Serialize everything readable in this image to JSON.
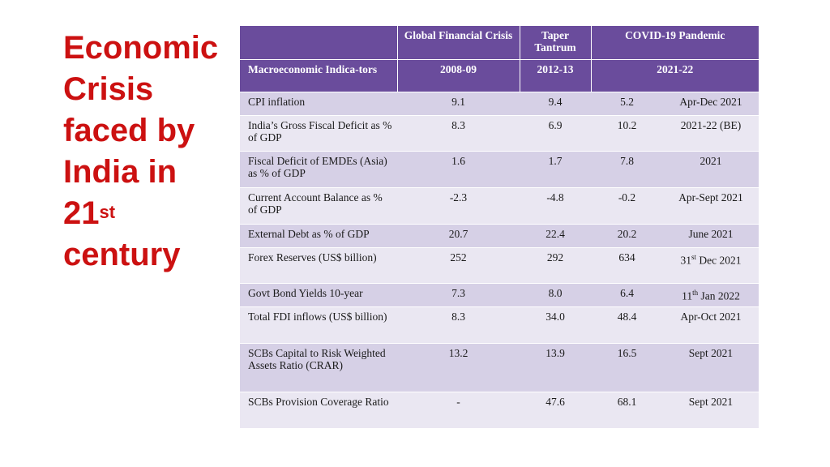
{
  "title": {
    "line1": "Economic",
    "line2": "Crisis",
    "line3": "faced by",
    "line4": "India in",
    "line5_base": "21",
    "line5_sup": "st",
    "line6": "century"
  },
  "table": {
    "headers": {
      "gfc": "Global Financial Crisis",
      "taper": "Taper Tantrum",
      "covid": "COVID-19 Pandemic",
      "indicator": "Macroeconomic Indica-tors",
      "p1": "2008-09",
      "p2": "2012-13",
      "p3": "2021-22"
    },
    "rows": [
      {
        "indicator": "CPI inflation",
        "gfc": "9.1",
        "taper": "9.4",
        "covid": "5.2",
        "period": "Apr-Dec 2021"
      },
      {
        "indicator": "India’s Gross Fiscal Deficit as % of GDP",
        "gfc": "8.3",
        "taper": "6.9",
        "covid": "10.2",
        "period": "2021-22 (BE)"
      },
      {
        "indicator": "Fiscal Deficit of EMDEs (Asia) as % of GDP",
        "gfc": "1.6",
        "taper": "1.7",
        "covid": "7.8",
        "period": "2021"
      },
      {
        "indicator": "Current Account Balance as % of GDP",
        "gfc": "-2.3",
        "taper": "-4.8",
        "covid": "-0.2",
        "period": "Apr-Sept 2021"
      },
      {
        "indicator": "External Debt as % of GDP",
        "gfc": "20.7",
        "taper": "22.4",
        "covid": "20.2",
        "period": "June 2021"
      },
      {
        "indicator": "Forex Reserves (US$ billion)",
        "gfc": "252",
        "taper": "292",
        "covid": "634",
        "period_pre": "31",
        "period_sup": "st",
        "period_post": " Dec 2021"
      },
      {
        "indicator": "Govt Bond Yields 10-year",
        "gfc": "7.3",
        "taper": "8.0",
        "covid": "6.4",
        "period_pre": "11",
        "period_sup": "th",
        "period_post": " Jan 2022"
      },
      {
        "indicator": "Total FDI inflows (US$ billion)",
        "gfc": "8.3",
        "taper": "34.0",
        "covid": "48.4",
        "period": "Apr-Oct 2021"
      },
      {
        "indicator": "SCBs Capital to Risk Weighted Assets Ratio (CRAR)",
        "gfc": "13.2",
        "taper": "13.9",
        "covid": "16.5",
        "period": "Sept 2021"
      },
      {
        "indicator": "SCBs Provision Coverage Ratio",
        "gfc": "-",
        "taper": "47.6",
        "covid": "68.1",
        "period": "Sept 2021"
      }
    ]
  },
  "colors": {
    "title": "#cc1111",
    "header_bg": "#6a4c9c",
    "row_dark": "#d6d0e6",
    "row_light": "#eae7f2"
  }
}
